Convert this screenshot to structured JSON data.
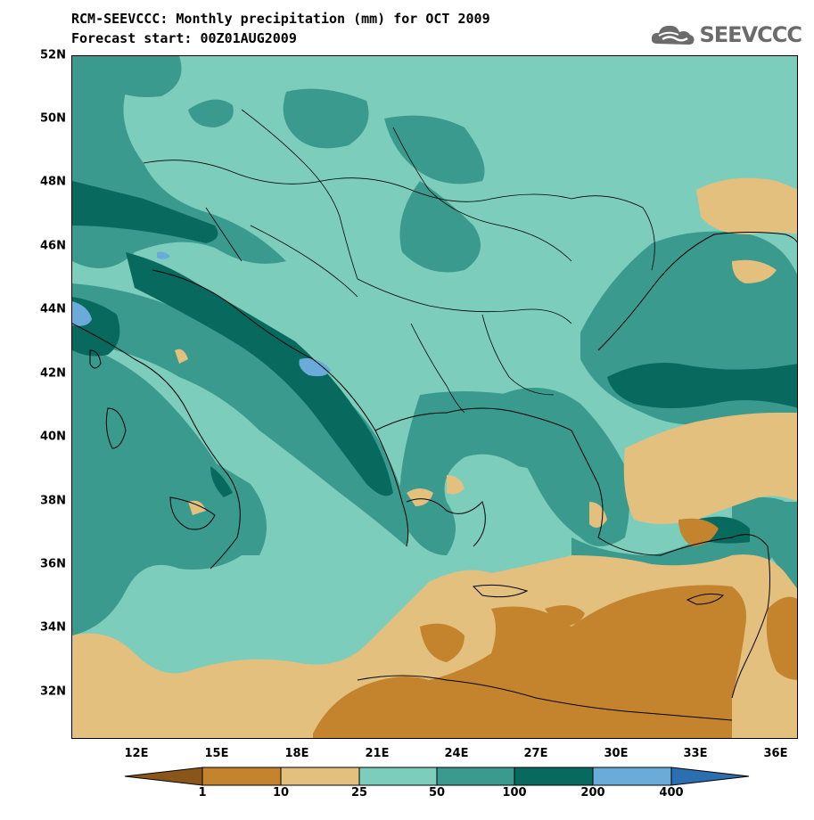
{
  "title_line1": "RCM-SEEVCCC: Monthly precipitation (mm) for OCT 2009",
  "title_line2": "Forecast start: 00Z01AUG2009",
  "logo_text": "SEEVCCC",
  "lat_labels": [
    "52N",
    "50N",
    "48N",
    "46N",
    "44N",
    "42N",
    "40N",
    "38N",
    "36N",
    "34N",
    "32N"
  ],
  "lon_labels": [
    "12E",
    "15E",
    "18E",
    "21E",
    "24E",
    "27E",
    "30E",
    "33E",
    "36E"
  ],
  "colorbar": {
    "labels": [
      "1",
      "10",
      "25",
      "50",
      "100",
      "200",
      "400"
    ],
    "colors": [
      "#8a5519",
      "#c4842e",
      "#e3c07e",
      "#7ccdbb",
      "#3a9a8e",
      "#08695e",
      "#6aabd9",
      "#2b6fb0"
    ]
  },
  "palette": {
    "lt25": "#e3c07e",
    "lt10": "#c4842e",
    "c50": "#7ccdbb",
    "c100": "#3a9a8e",
    "c200": "#08695e",
    "c400": "#6aabd9"
  }
}
